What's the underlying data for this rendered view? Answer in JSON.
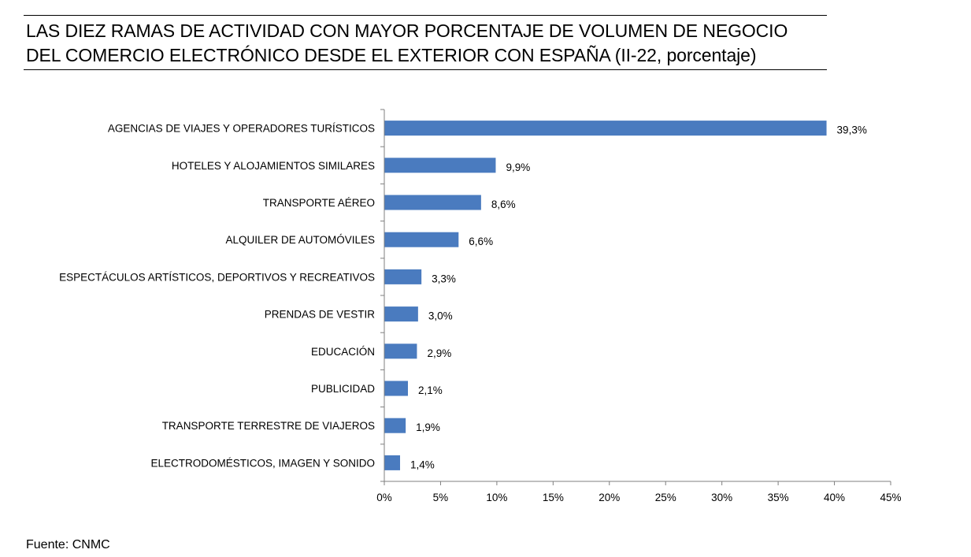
{
  "header": {
    "title_line1": "LAS DIEZ RAMAS DE ACTIVIDAD CON MAYOR PORCENTAJE DE VOLUMEN DE NEGOCIO",
    "title_line2": "DEL COMERCIO ELECTRÓNICO DESDE EL EXTERIOR CON ESPAÑA (II-22, porcentaje)"
  },
  "footer": {
    "source": "Fuente: CNMC"
  },
  "colors": {
    "bar": "#4a7bbf",
    "axis": "#7f7f7f"
  },
  "chart_data": {
    "type": "bar",
    "orientation": "horizontal",
    "title": "LAS DIEZ RAMAS DE ACTIVIDAD CON MAYOR PORCENTAJE DE VOLUMEN DE NEGOCIO DEL COMERCIO ELECTRÓNICO DESDE EL EXTERIOR CON ESPAÑA (II-22, porcentaje)",
    "categories": [
      "AGENCIAS DE VIAJES Y OPERADORES TURÍSTICOS",
      "HOTELES  Y ALOJAMIENTOS SIMILARES",
      "TRANSPORTE AÉREO",
      "ALQUILER DE AUTOMÓVILES",
      "ESPECTÁCULOS ARTÍSTICOS, DEPORTIVOS Y RECREATIVOS",
      "PRENDAS DE VESTIR",
      "EDUCACIÓN",
      "PUBLICIDAD",
      "TRANSPORTE TERRESTRE DE VIAJEROS",
      "ELECTRODOMÉSTICOS,  IMAGEN Y SONIDO"
    ],
    "values": [
      39.3,
      9.9,
      8.6,
      6.6,
      3.3,
      3.0,
      2.9,
      2.1,
      1.9,
      1.4
    ],
    "value_labels": [
      "39,3%",
      "9,9%",
      "8,6%",
      "6,6%",
      "3,3%",
      "3,0%",
      "2,9%",
      "2,1%",
      "1,9%",
      "1,4%"
    ],
    "xlim": [
      0,
      45
    ],
    "x_ticks": [
      0,
      5,
      10,
      15,
      20,
      25,
      30,
      35,
      40,
      45
    ],
    "x_tick_labels": [
      "0%",
      "5%",
      "10%",
      "15%",
      "20%",
      "25%",
      "30%",
      "35%",
      "40%",
      "45%"
    ],
    "grid": false,
    "legend": "none"
  }
}
